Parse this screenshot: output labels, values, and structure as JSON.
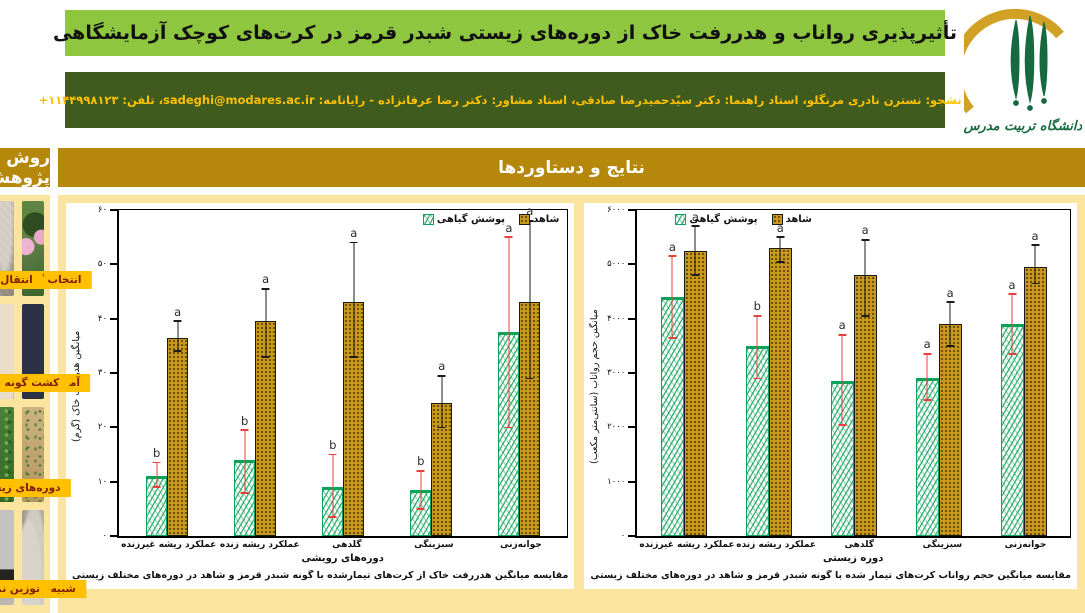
{
  "header": {
    "title": "تأثیرپذیری رواناب و هدررفت خاک از دوره‌های زیستی شبدر قرمز در کرت‌های کوچک آزمایشگاهی",
    "student_info": "دانشجو: نسترن نادری مرنگلو، استاد راهنما: دکتر سیّدحمیدرضا صادقی، استاد مشاور: دکتر رضا عرفانزاده - رایانامه: ",
    "email": "sadeghi@modares.ac.ir",
    "phone_label": "، تلفن: ",
    "phone": "+۱۱۴۴۹۹۸۱۲۳",
    "university_logo_text": "دانشگاه تربیت مدرس"
  },
  "sections": {
    "results_title": "نتایج و دستاوردها",
    "methods_title": "روش پژوهش"
  },
  "colors": {
    "title_green": "#8ec63f",
    "subtitle_dark_green": "#3f5b1e",
    "section_header_gold": "#b5870a",
    "panel_yellow": "#fbe49e",
    "photo_label_amber": "#ffc000",
    "photo_label_text": "#7f1d00",
    "bar_gold": "#c9991d",
    "bar_green_hatch": "#14a05c",
    "error_bar_red": "#e8403a",
    "error_bar_black": "#1c1c1c"
  },
  "chart_data": [
    {
      "type": "bar",
      "caption": "مقایسه میانگین هدررفت خاک از کرت‌های تیمارشده با گونه شبدر قرمز و شاهد در دوره‌های مختلف زیستی",
      "ylabel": "میانگین هدررفت خاک (گرم)",
      "xlabel": "دوره‌های رویشی",
      "ylim": [
        0,
        60
      ],
      "ytick_step": 10,
      "ytick_labels": [
        "۰",
        "۱۰",
        "۲۰",
        "۳۰",
        "۴۰",
        "۵۰",
        "۶۰"
      ],
      "grid": false,
      "legend_position": "top-right",
      "legend": [
        {
          "label": "شاهد",
          "swatch": "pat-gold"
        },
        {
          "label": "پوشش گیاهی",
          "swatch": "pat-green"
        }
      ],
      "categories": [
        "جوانه‌زنی",
        "سبزینگی",
        "گلدهی",
        "عملکرد ریشه زنده",
        "عملکرد ریشه غیرزنده"
      ],
      "series": [
        {
          "name": "پوشش گیاهی",
          "style": "pat-green",
          "err_color": "#e8403a",
          "values": [
            37.5,
            8.5,
            9,
            14,
            11
          ],
          "err_lo": [
            20,
            5,
            3.5,
            8,
            9
          ],
          "err_hi": [
            55,
            12,
            15,
            19.5,
            13.5
          ],
          "letters": [
            "a",
            "b",
            "b",
            "b",
            "b"
          ]
        },
        {
          "name": "شاهد",
          "style": "pat-gold",
          "err_color": "#1c1c1c",
          "values": [
            43,
            24.5,
            43,
            39.5,
            36.5
          ],
          "err_lo": [
            29,
            20,
            33,
            33,
            34
          ],
          "err_hi": [
            58,
            29.5,
            54,
            45.5,
            39.5
          ],
          "letters": [
            "a",
            "a",
            "a",
            "a",
            "a"
          ]
        }
      ]
    },
    {
      "type": "bar",
      "caption": "مقایسه میانگین حجم رواناب کرت‌های تیمار شده با گونه شبدر قرمز و شاهد در دوره‌های مختلف زیستی",
      "ylabel": "میانگین حجم رواناب (سانتی‌متر مکعب)",
      "xlabel": "دوره زیستی",
      "ylim": [
        0,
        6000
      ],
      "ytick_step": 1000,
      "ytick_labels": [
        "۰",
        "۱۰۰۰",
        "۲۰۰۰",
        "۳۰۰۰",
        "۴۰۰۰",
        "۵۰۰۰",
        "۶۰۰۰"
      ],
      "grid": false,
      "legend_position": "top-left",
      "legend": [
        {
          "label": "شاهد",
          "swatch": "pat-gold"
        },
        {
          "label": "پوشش گیاهی",
          "swatch": "pat-green"
        }
      ],
      "categories": [
        "جوانه‌زنی",
        "سبزینگی",
        "گلدهی",
        "عملکرد ریشه زنده",
        "عملکرد ریشه غیرزنده"
      ],
      "series": [
        {
          "name": "پوشش گیاهی",
          "style": "pat-green",
          "err_color": "#e8403a",
          "values": [
            3900,
            2900,
            2850,
            3500,
            4400
          ],
          "err_lo": [
            3350,
            2500,
            2050,
            2900,
            3650
          ],
          "err_hi": [
            4450,
            3350,
            3700,
            4050,
            5150
          ],
          "letters": [
            "a",
            "a",
            "a",
            "b",
            "a"
          ]
        },
        {
          "name": "شاهد",
          "style": "pat-gold",
          "err_color": "#1c1c1c",
          "values": [
            4950,
            3900,
            4800,
            5300,
            5250
          ],
          "err_lo": [
            4650,
            3500,
            4050,
            5050,
            4800
          ],
          "err_hi": [
            5350,
            4300,
            5450,
            5500,
            5700
          ],
          "letters": [
            "a",
            "a",
            "a",
            "a",
            "a"
          ]
        }
      ]
    }
  ],
  "methods_photos": {
    "shared_label_row3": "دوره‌های زیستی",
    "items": [
      {
        "style": "ph-clover-flowers",
        "label": "انتخاب گونه گیاهی",
        "image_desc": "red clover flowering plants"
      },
      {
        "style": "ph-soil-pile",
        "label": "انتقال خاک",
        "image_desc": "pile of sieved soil"
      },
      {
        "style": "ph-plot-prep",
        "label": "آماده‌سازی کرت‌ها",
        "image_desc": "researcher preparing small plots"
      },
      {
        "style": "ph-planting",
        "label": "کشت گونه شبدرقرمز",
        "image_desc": "sowing red clover seeds in plot"
      },
      {
        "style": "ph-seedlings",
        "label": null,
        "image_desc": "sparse clover seedlings on soil"
      },
      {
        "style": "ph-clover-dense",
        "label": null,
        "image_desc": "dense clover cover in plot"
      },
      {
        "style": "ph-rain-sim",
        "label": "شبیه‌سازی باران",
        "image_desc": "rainfall simulator over covered plots"
      },
      {
        "style": "ph-scale",
        "label": "توزین نمونه‌ها",
        "image_desc": "digital balance weighing samples"
      }
    ]
  }
}
